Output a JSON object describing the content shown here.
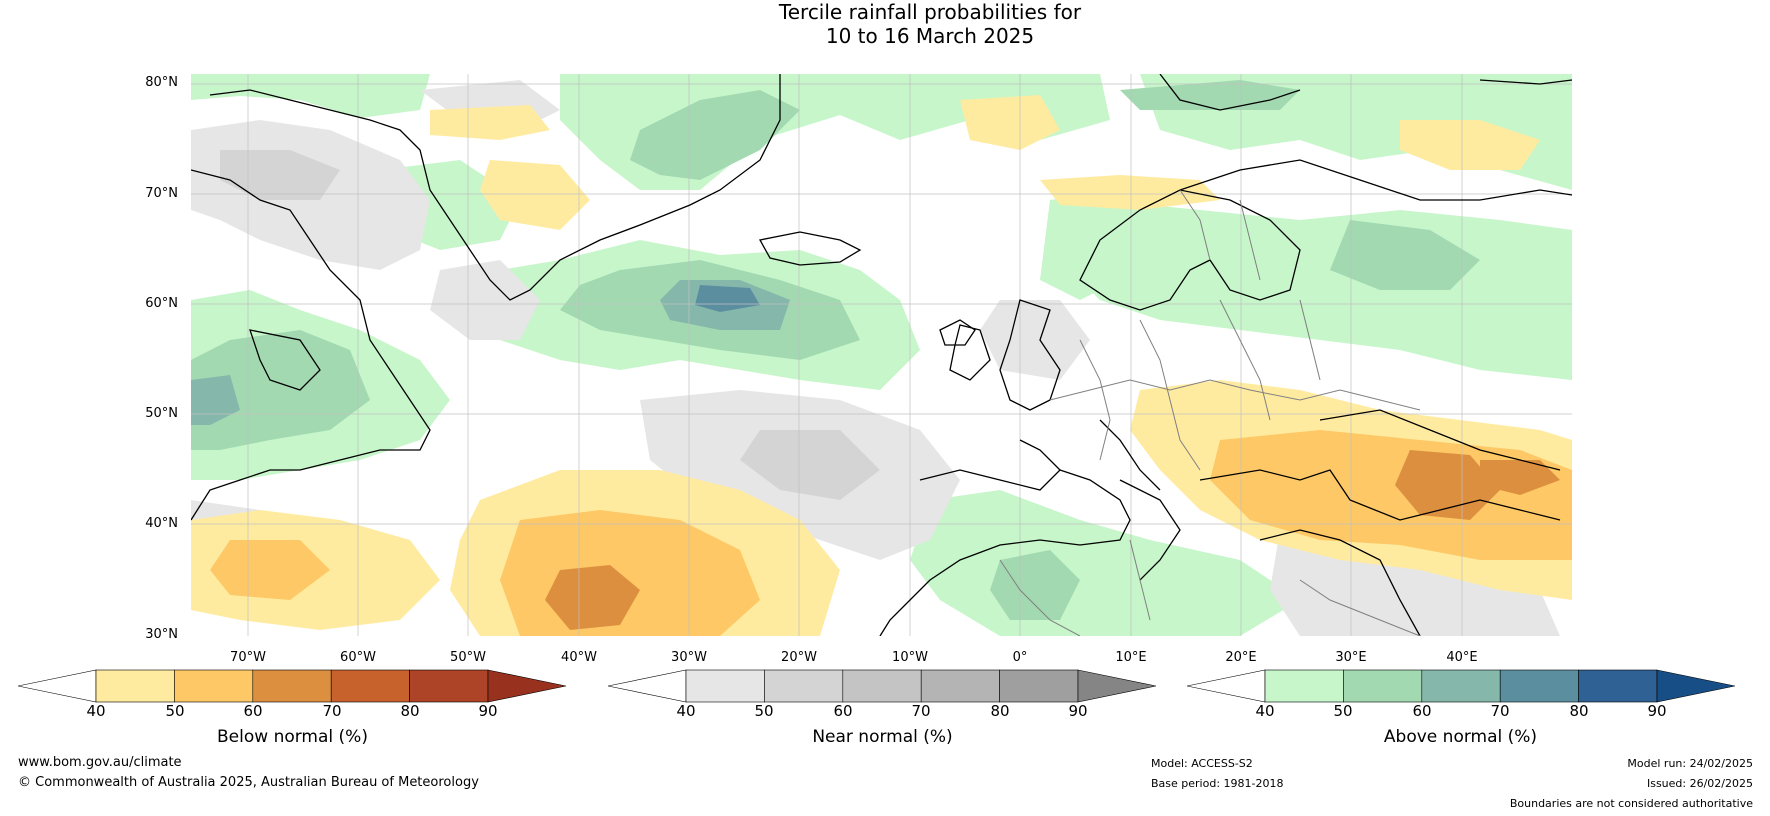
{
  "title": {
    "line1": "Tercile rainfall probabilities for",
    "line2": "10 to 16 March 2025"
  },
  "map": {
    "lat_labels": [
      "80°N",
      "70°N",
      "60°N",
      "50°N",
      "40°N",
      "30°N"
    ],
    "lon_labels": [
      "70°W",
      "60°W",
      "50°W",
      "40°W",
      "30°W",
      "20°W",
      "10°W",
      "0°",
      "10°E",
      "20°E",
      "30°E",
      "40°E"
    ],
    "colors": {
      "land_outline": "#000000",
      "border": "#808080",
      "grid": "#c0c0c0"
    }
  },
  "colorbars": [
    {
      "label": "Below normal (%)",
      "ticks": [
        "40",
        "50",
        "60",
        "70",
        "80",
        "90"
      ],
      "colors": [
        "#ffffff",
        "#ffeba0",
        "#fdc865",
        "#dd8f40",
        "#c8622d",
        "#ae4427",
        "#99311f"
      ]
    },
    {
      "label": "Near normal (%)",
      "ticks": [
        "40",
        "50",
        "60",
        "70",
        "80",
        "90"
      ],
      "colors": [
        "#ffffff",
        "#e6e6e6",
        "#d4d4d4",
        "#c4c4c4",
        "#b4b4b4",
        "#9f9f9f",
        "#858585"
      ]
    },
    {
      "label": "Above normal (%)",
      "ticks": [
        "40",
        "50",
        "60",
        "70",
        "80",
        "90"
      ],
      "colors": [
        "#ffffff",
        "#c6f6ca",
        "#a2d9b1",
        "#85b7aa",
        "#5b8fa0",
        "#306194",
        "#174e86"
      ]
    }
  ],
  "footer": {
    "website": "www.bom.gov.au/climate",
    "copyright": "© Commonwealth of Australia 2025, Australian Bureau of Meteorology",
    "model": "Model: ACCESS-S2",
    "base_period": "Base period: 1981-2018",
    "model_run": "Model run: 24/02/2025",
    "issued": "Issued: 26/02/2025",
    "disclaimer": "Boundaries are not considered authoritative"
  }
}
